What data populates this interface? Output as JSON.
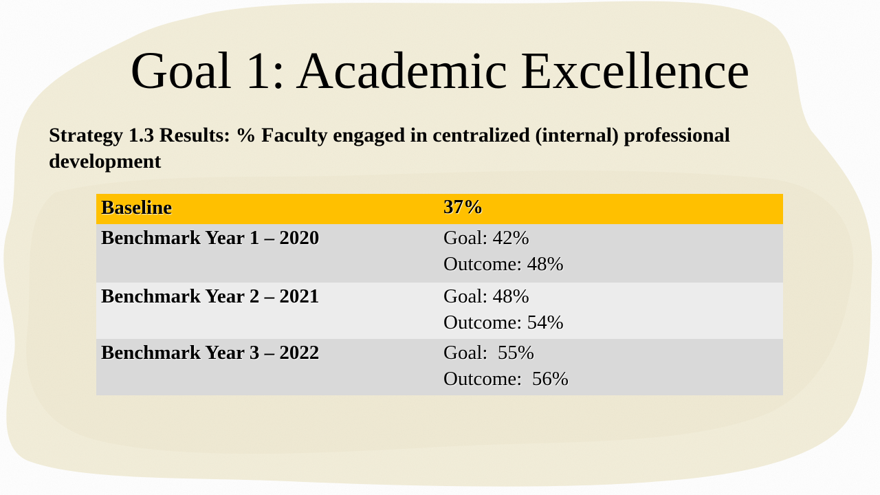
{
  "slide": {
    "title": "Goal 1:  Academic Excellence",
    "subtitle": "Strategy 1.3 Results:  % Faculty engaged in centralized (internal) professional development"
  },
  "table": {
    "rows": [
      {
        "label": "Baseline",
        "value_lines": [
          "37%"
        ]
      },
      {
        "label": "Benchmark Year 1 – 2020",
        "value_lines": [
          "Goal: 42%",
          "Outcome: 48%"
        ]
      },
      {
        "label": "Benchmark Year 2 – 2021",
        "value_lines": [
          "Goal: 48%",
          "Outcome: 54%"
        ]
      },
      {
        "label": "Benchmark Year 3 – 2022",
        "value_lines": [
          "Goal:  55%",
          "Outcome:  56%"
        ]
      }
    ]
  },
  "colors": {
    "baseline_highlight": "#ffc000",
    "row_dark": "#d9d9d9",
    "row_light": "#ececec",
    "texture": "#f2ecd6"
  }
}
